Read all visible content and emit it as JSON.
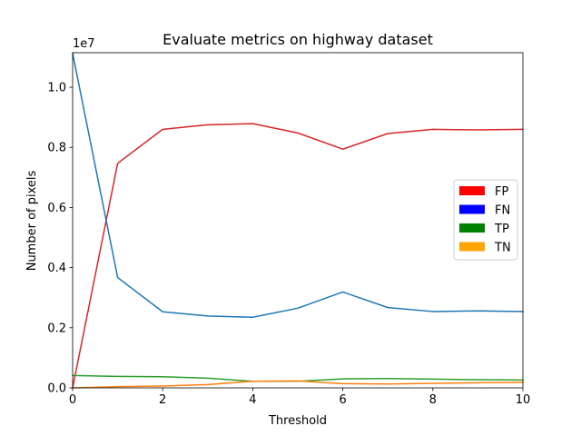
{
  "chart_data": {
    "type": "line",
    "title": "Evaluate metrics on highway dataset",
    "xlabel": "Threshold",
    "ylabel": "Number of pixels",
    "y_offset_label": "1e7",
    "y_scale": 10000000,
    "xlim": [
      0,
      10
    ],
    "ylim": [
      0,
      1.115
    ],
    "x_ticks": [
      0,
      2,
      4,
      6,
      8,
      10
    ],
    "y_ticks": [
      0.0,
      0.2,
      0.4,
      0.6,
      0.8,
      1.0
    ],
    "y_tick_labels": [
      "0.0",
      "0.2",
      "0.4",
      "0.6",
      "0.8",
      "1.0"
    ],
    "grid": false,
    "legend_position": "center-right",
    "legend": [
      {
        "label": "FP",
        "color": "#ff0000"
      },
      {
        "label": "FN",
        "color": "#0000ff"
      },
      {
        "label": "TP",
        "color": "#008000"
      },
      {
        "label": "TN",
        "color": "#ffa500"
      }
    ],
    "x": [
      0,
      1,
      2,
      3,
      4,
      5,
      6,
      7,
      8,
      9,
      10
    ],
    "series": [
      {
        "color": "#d62728",
        "values": [
          0.0,
          0.747,
          0.86,
          0.875,
          0.879,
          0.848,
          0.794,
          0.846,
          0.86,
          0.858,
          0.86
        ]
      },
      {
        "color": "#1f77b4",
        "values": [
          1.113,
          0.367,
          0.253,
          0.239,
          0.235,
          0.265,
          0.319,
          0.267,
          0.254,
          0.256,
          0.254
        ]
      },
      {
        "color": "#2ca02c",
        "values": [
          0.041,
          0.038,
          0.037,
          0.032,
          0.022,
          0.022,
          0.03,
          0.031,
          0.029,
          0.027,
          0.026
        ]
      },
      {
        "color": "#ff7f0e",
        "values": [
          0.0,
          0.004,
          0.006,
          0.011,
          0.022,
          0.023,
          0.014,
          0.013,
          0.015,
          0.017,
          0.018
        ]
      }
    ]
  }
}
